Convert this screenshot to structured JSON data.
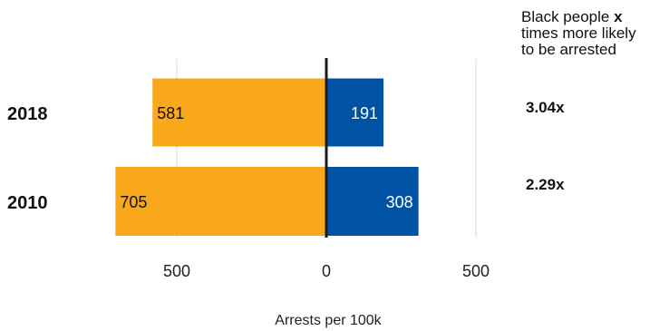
{
  "chart_data": {
    "type": "bar",
    "orientation": "horizontal-diverging",
    "categories": [
      "2018",
      "2010"
    ],
    "series": [],
    "values_left": [
      581,
      705
    ],
    "values_right": [
      191,
      308
    ],
    "ratios": [
      "3.04x",
      "2.29x"
    ],
    "xlabel": "Arrests per 100k",
    "xticks": [
      "500",
      "0",
      "500"
    ],
    "xlim": [
      -700,
      700
    ],
    "grid": true,
    "note": {
      "line1_prefix": "Black people ",
      "line1_bold": "x",
      "line2": "times more likely",
      "line3": "to be arrested"
    },
    "colors": {
      "left": "#F9A81B",
      "right": "#0052A5",
      "axis": "#1a1a1a",
      "grid": "#e5e5e5"
    }
  }
}
